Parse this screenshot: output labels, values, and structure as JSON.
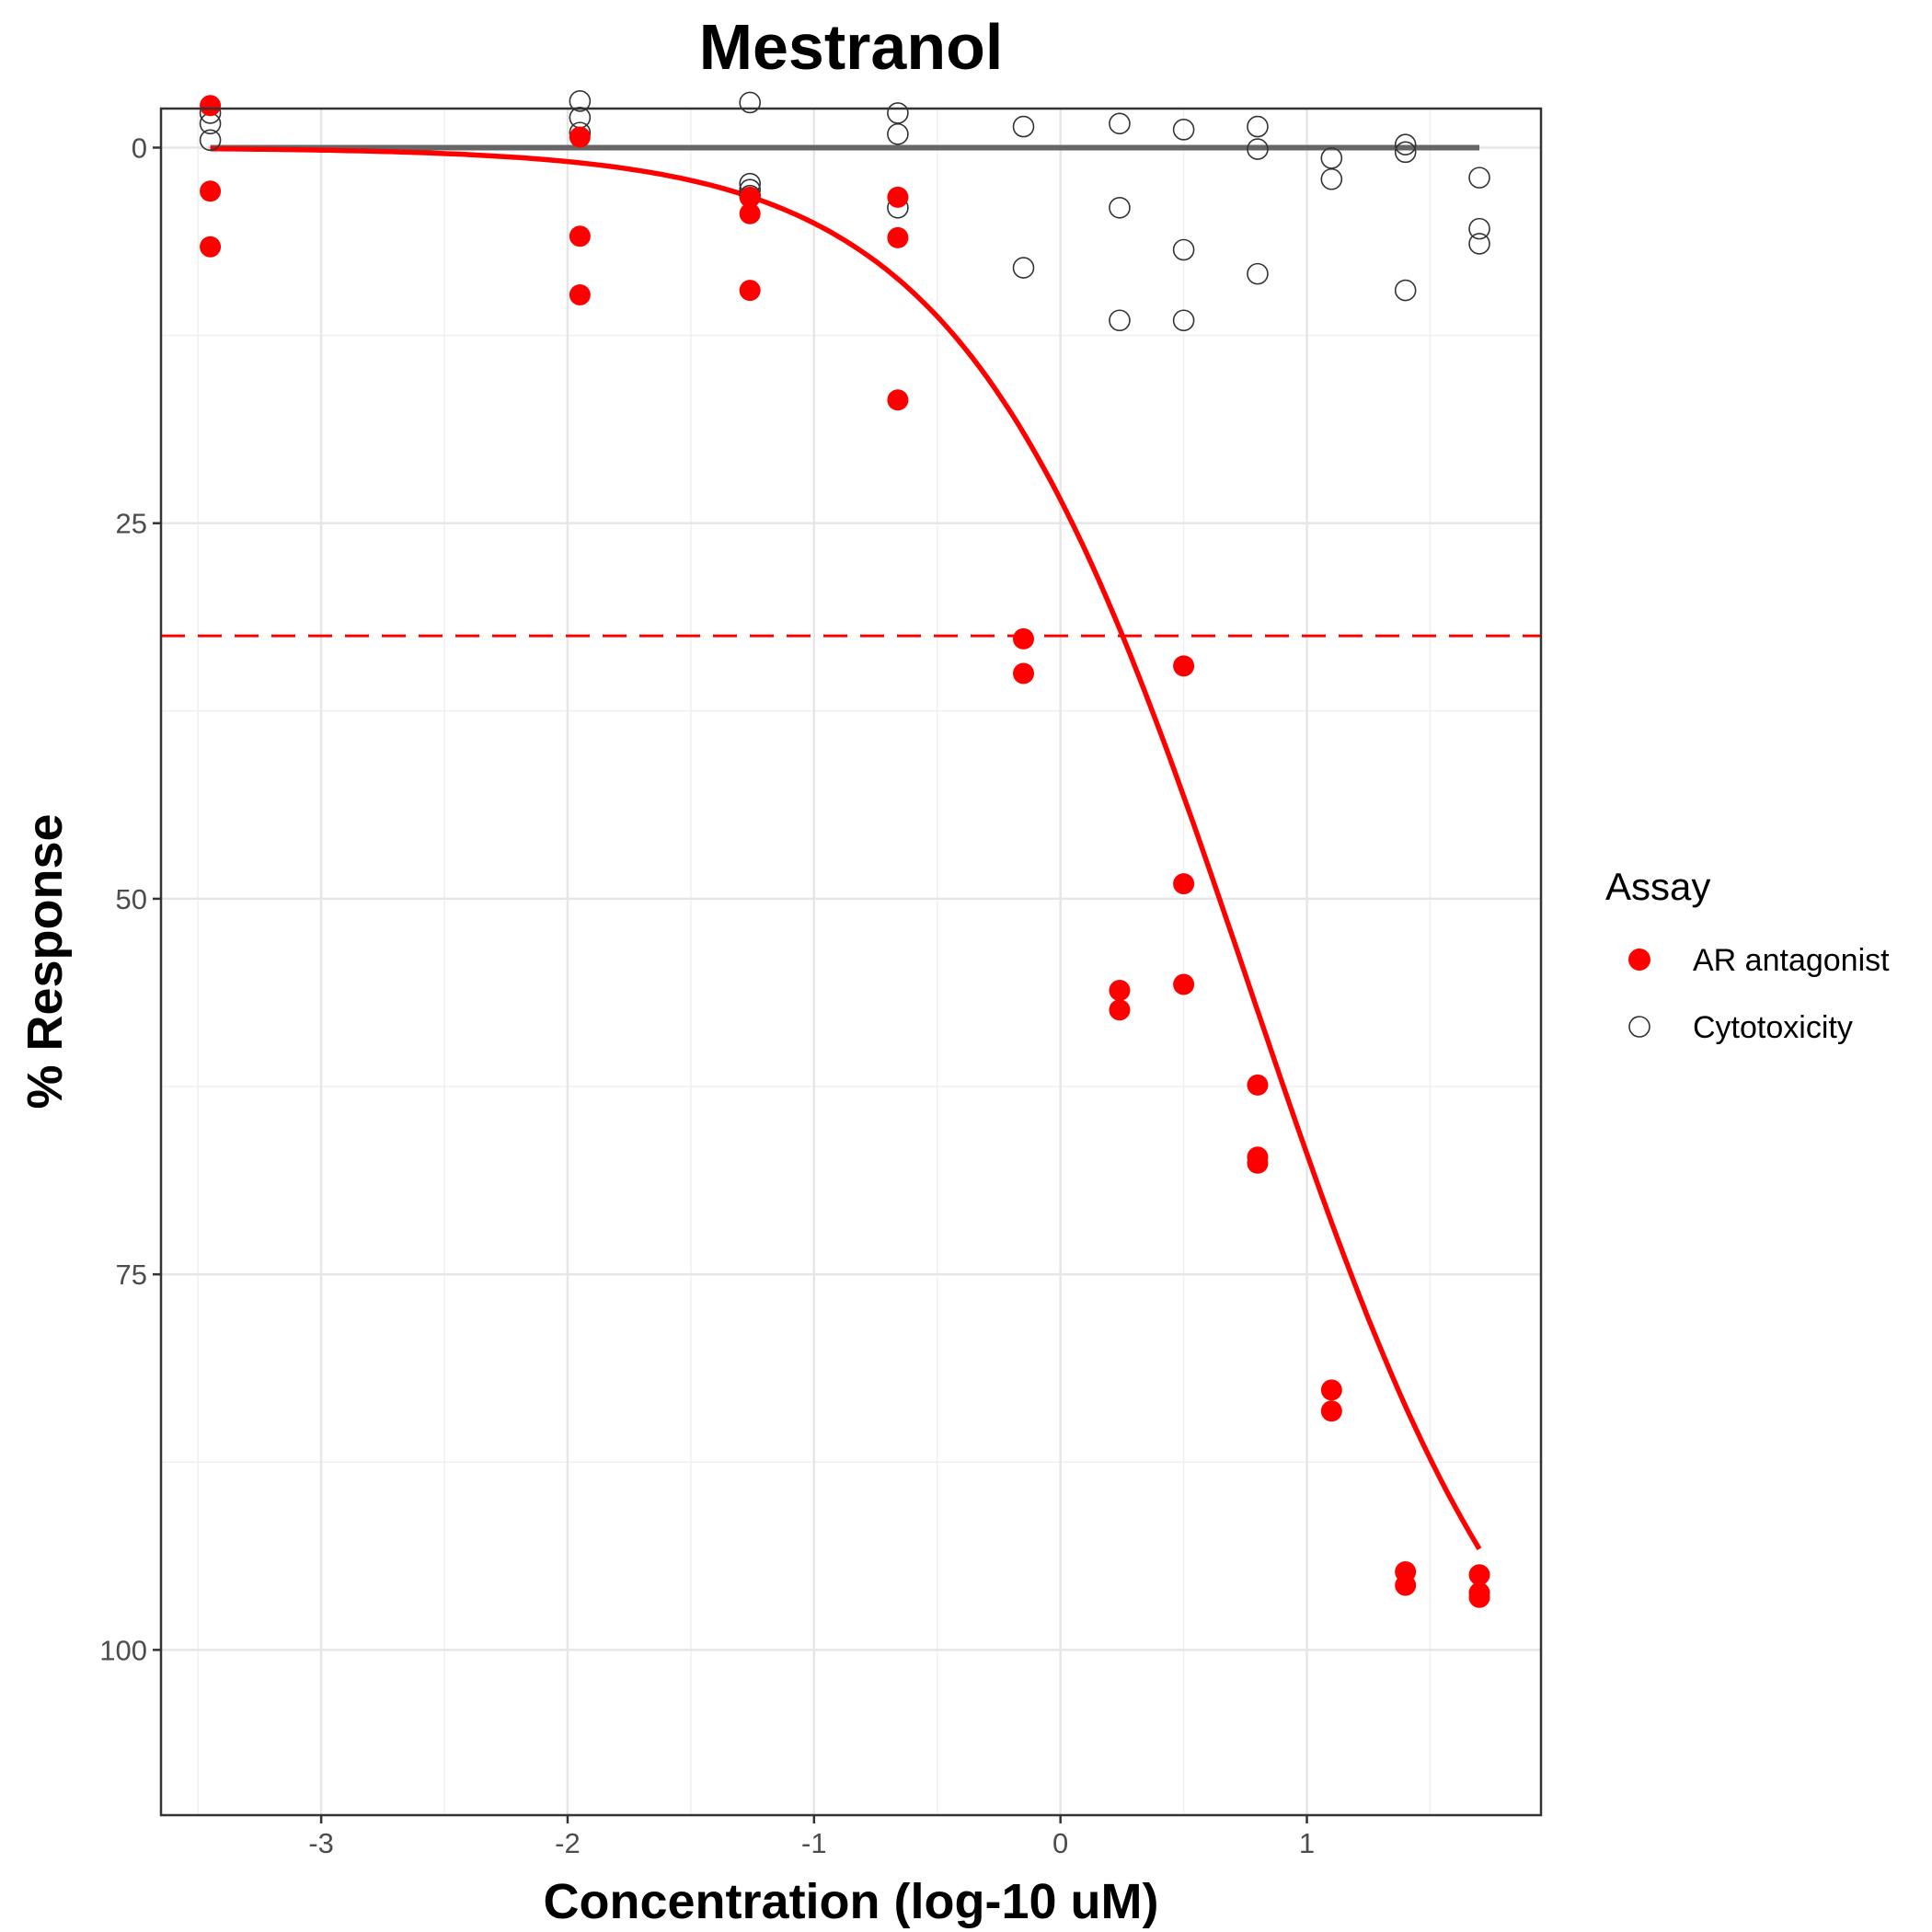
{
  "chart_data": {
    "type": "scatter",
    "title": "Mestranol",
    "xlabel": "Concentration (log-10 uM)",
    "ylabel": "% Response",
    "xlim": [
      -3.65,
      1.95
    ],
    "ylim": [
      -2.6,
      111
    ],
    "y_reversed": true,
    "x_ticks": [
      -3,
      -2,
      -1,
      0,
      1
    ],
    "x_tick_labels": [
      "-3",
      "-2",
      "-1",
      "0",
      "1"
    ],
    "y_ticks": [
      0,
      25,
      50,
      75,
      100
    ],
    "y_tick_labels": [
      "0",
      "25",
      "50",
      "75",
      "100"
    ],
    "grid": true,
    "legend": {
      "title": "Assay",
      "position": "right",
      "entries": [
        {
          "label": "AR antagonist",
          "marker": "filled-circle",
          "color": "#ff0000"
        },
        {
          "label": "Cytotoxicity",
          "marker": "open-circle",
          "color": "#333333"
        }
      ]
    },
    "series": [
      {
        "name": "AR antagonist",
        "kind": "points",
        "color": "#ff0000",
        "x": [
          -3.45,
          -3.45,
          -3.45,
          -1.95,
          -1.95,
          -1.95,
          -1.26,
          -1.26,
          -1.26,
          -0.66,
          -0.66,
          -0.66,
          -0.15,
          -0.15,
          0.24,
          0.24,
          0.5,
          0.5,
          0.5,
          0.8,
          0.8,
          0.8,
          1.1,
          1.1,
          1.4,
          1.4,
          1.7,
          1.7,
          1.7
        ],
        "y": [
          -2.8,
          2.9,
          6.6,
          -0.7,
          5.9,
          9.8,
          3.3,
          4.4,
          9.5,
          3.3,
          6.0,
          16.8,
          32.7,
          35.0,
          56.1,
          57.4,
          34.5,
          49.0,
          55.7,
          62.4,
          67.2,
          67.6,
          82.7,
          84.1,
          94.8,
          95.7,
          95.0,
          96.2,
          96.5
        ]
      },
      {
        "name": "Cytotoxicity",
        "kind": "points",
        "color": "#333333",
        "x": [
          -3.45,
          -3.45,
          -3.45,
          -1.95,
          -1.95,
          -1.95,
          -1.26,
          -1.26,
          -1.26,
          -1.26,
          -0.66,
          -0.66,
          -0.66,
          -0.15,
          -0.15,
          0.24,
          0.24,
          0.24,
          0.5,
          0.5,
          0.5,
          0.8,
          0.8,
          0.8,
          1.1,
          1.1,
          1.4,
          1.4,
          1.4,
          1.7,
          1.7,
          1.7
        ],
        "y": [
          -2.3,
          -1.6,
          -0.5,
          -3.1,
          -2.0,
          -1.0,
          -3.0,
          2.4,
          2.8,
          3.2,
          -2.3,
          -0.9,
          4.0,
          -1.4,
          8.0,
          -1.6,
          4.0,
          11.5,
          -1.2,
          6.8,
          11.5,
          -1.4,
          0.1,
          8.4,
          0.7,
          2.1,
          -0.2,
          0.3,
          9.5,
          2.0,
          5.4,
          6.4
        ]
      },
      {
        "name": "AR antagonist fit",
        "kind": "curve",
        "color": "#ff0000",
        "x_range": [
          -3.45,
          1.7
        ],
        "model": "hill",
        "top": 112,
        "ac50_log": 0.77,
        "hill_slope": 0.75
      },
      {
        "name": "Cytotoxicity fit",
        "kind": "flat-line",
        "color": "#666666",
        "x_range": [
          -3.45,
          1.7
        ],
        "y": 0
      },
      {
        "name": "cutoff",
        "kind": "dashed-hline",
        "color": "#ff0000",
        "y": 32.5
      }
    ]
  }
}
